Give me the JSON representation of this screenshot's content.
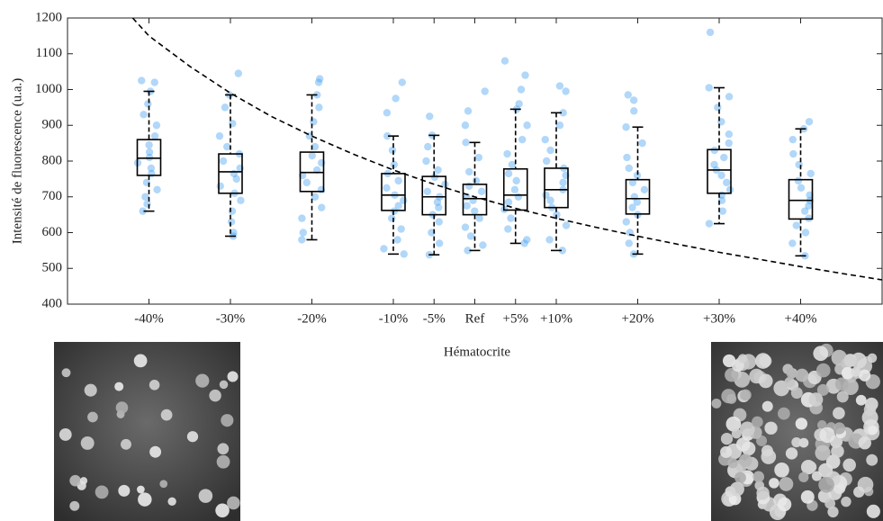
{
  "chart_data": {
    "type": "box",
    "xlabel": "Hématocrite",
    "ylabel": "Intensité de fluorescence (u.a.)",
    "xlim": [
      -50,
      50
    ],
    "xticks": [
      {
        "value": -40,
        "label": "-40%"
      },
      {
        "value": -30,
        "label": "-30%"
      },
      {
        "value": -20,
        "label": "-20%"
      },
      {
        "value": -10,
        "label": "-10%"
      },
      {
        "value": -5,
        "label": "-5%"
      },
      {
        "value": 0,
        "label": "Ref"
      },
      {
        "value": 5,
        "label": "+5%"
      },
      {
        "value": 10,
        "label": "+10%"
      },
      {
        "value": 20,
        "label": "+20%"
      },
      {
        "value": 30,
        "label": "+30%"
      },
      {
        "value": 40,
        "label": "+40%"
      }
    ],
    "ylim": [
      400,
      1200
    ],
    "yticks": [
      400,
      500,
      600,
      700,
      800,
      900,
      1000,
      1100,
      1200
    ],
    "box_color": "#000000",
    "point_color": "#3d9cf0",
    "boxes": [
      {
        "x": -40,
        "whislo": 660,
        "q1": 760,
        "med": 808,
        "q3": 860,
        "whishi": 995,
        "points": [
          1025,
          1020,
          995,
          960,
          930,
          900,
          870,
          845,
          825,
          810,
          795,
          780,
          765,
          740,
          720,
          700,
          680,
          660
        ]
      },
      {
        "x": -30,
        "whislo": 590,
        "q1": 710,
        "med": 770,
        "q3": 820,
        "whishi": 985,
        "points": [
          1045,
          985,
          950,
          905,
          870,
          840,
          820,
          800,
          780,
          765,
          750,
          730,
          710,
          690,
          660,
          630,
          600,
          590
        ]
      },
      {
        "x": -20,
        "whislo": 580,
        "q1": 715,
        "med": 768,
        "q3": 825,
        "whishi": 985,
        "points": [
          1030,
          1020,
          985,
          950,
          910,
          870,
          840,
          815,
          795,
          775,
          760,
          740,
          720,
          700,
          670,
          640,
          600,
          580
        ]
      },
      {
        "x": -10,
        "whislo": 540,
        "q1": 662,
        "med": 705,
        "q3": 765,
        "whishi": 870,
        "points": [
          1020,
          975,
          935,
          870,
          830,
          790,
          765,
          745,
          725,
          705,
          690,
          675,
          660,
          640,
          610,
          580,
          555,
          540
        ]
      },
      {
        "x": -5,
        "whislo": 538,
        "q1": 650,
        "med": 700,
        "q3": 757,
        "whishi": 872,
        "points": [
          925,
          872,
          840,
          800,
          775,
          755,
          735,
          715,
          700,
          685,
          670,
          650,
          630,
          600,
          570,
          538
        ]
      },
      {
        "x": 0,
        "whislo": 550,
        "q1": 650,
        "med": 695,
        "q3": 735,
        "whishi": 852,
        "points": [
          995,
          940,
          900,
          852,
          810,
          770,
          745,
          730,
          715,
          700,
          690,
          675,
          660,
          640,
          615,
          590,
          565,
          550
        ]
      },
      {
        "x": 5,
        "whislo": 570,
        "q1": 663,
        "med": 705,
        "q3": 778,
        "whishi": 945,
        "points": [
          1080,
          1040,
          1000,
          960,
          945,
          900,
          860,
          820,
          790,
          765,
          745,
          720,
          700,
          685,
          665,
          640,
          610,
          580,
          570
        ]
      },
      {
        "x": 10,
        "whislo": 550,
        "q1": 670,
        "med": 720,
        "q3": 780,
        "whishi": 935,
        "points": [
          1010,
          995,
          935,
          900,
          860,
          830,
          800,
          780,
          760,
          740,
          720,
          705,
          690,
          670,
          650,
          620,
          580,
          550
        ]
      },
      {
        "x": 20,
        "whislo": 540,
        "q1": 652,
        "med": 695,
        "q3": 748,
        "whishi": 895,
        "points": [
          985,
          970,
          940,
          895,
          850,
          810,
          780,
          760,
          740,
          720,
          700,
          685,
          670,
          650,
          630,
          600,
          570,
          540
        ]
      },
      {
        "x": 30,
        "whislo": 625,
        "q1": 710,
        "med": 775,
        "q3": 832,
        "whishi": 1005,
        "points": [
          1160,
          1005,
          980,
          950,
          910,
          875,
          850,
          830,
          810,
          790,
          775,
          760,
          740,
          720,
          705,
          690,
          660,
          625
        ]
      },
      {
        "x": 40,
        "whislo": 535,
        "q1": 638,
        "med": 690,
        "q3": 748,
        "whishi": 890,
        "points": [
          910,
          890,
          860,
          820,
          790,
          765,
          745,
          725,
          705,
          690,
          675,
          660,
          640,
          620,
          600,
          570,
          535
        ]
      }
    ],
    "curve": {
      "color": "#000000",
      "x": [
        -42,
        -40,
        -35,
        -30,
        -25,
        -20,
        -15,
        -10,
        -5,
        0,
        5,
        10,
        15,
        20,
        25,
        30,
        35,
        40,
        45,
        50
      ],
      "values": [
        1200,
        1150,
        1065,
        990,
        925,
        870,
        820,
        775,
        735,
        700,
        668,
        640,
        614,
        590,
        567,
        545,
        525,
        505,
        486,
        468
      ]
    }
  }
}
